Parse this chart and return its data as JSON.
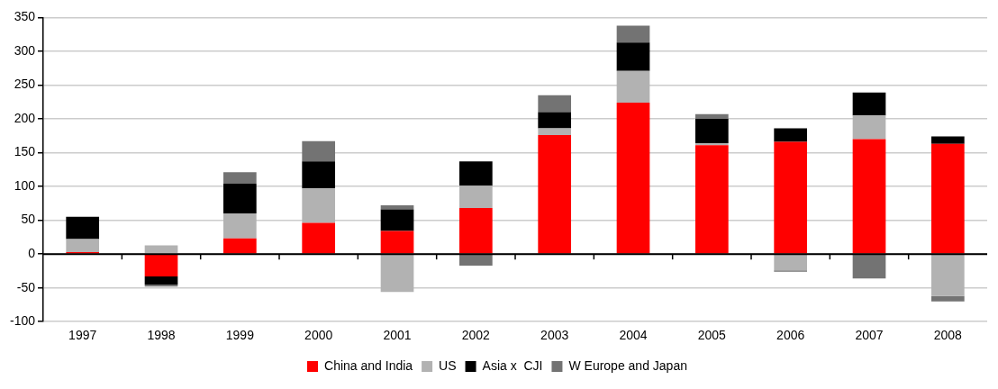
{
  "chart_data": {
    "type": "bar",
    "stacked": true,
    "categories": [
      "1997",
      "1998",
      "1999",
      "2000",
      "2001",
      "2002",
      "2003",
      "2004",
      "2005",
      "2006",
      "2007",
      "2008"
    ],
    "series": [
      {
        "name": "China and India",
        "color": "#ff0000",
        "values": [
          3,
          -33,
          23,
          46,
          34,
          68,
          176,
          224,
          161,
          166,
          170,
          163
        ]
      },
      {
        "name": "US",
        "color": "#b2b2b2",
        "values": [
          19,
          13,
          37,
          51,
          -56,
          33,
          10,
          47,
          3,
          -24,
          35,
          -62
        ]
      },
      {
        "name": "Asia x  CJI",
        "color": "#000000",
        "values": [
          33,
          -12,
          44,
          40,
          32,
          36,
          24,
          42,
          36,
          20,
          34,
          11
        ]
      },
      {
        "name": "W Europe and Japan",
        "color": "#737373",
        "values": [
          0,
          -3,
          17,
          30,
          6,
          -17,
          25,
          25,
          7,
          -2,
          -36,
          -8
        ]
      }
    ],
    "ylim": [
      -100,
      350
    ],
    "yticks": [
      -100,
      -50,
      0,
      50,
      100,
      150,
      200,
      250,
      300,
      350
    ],
    "grid": "y",
    "legend": "bottom"
  }
}
